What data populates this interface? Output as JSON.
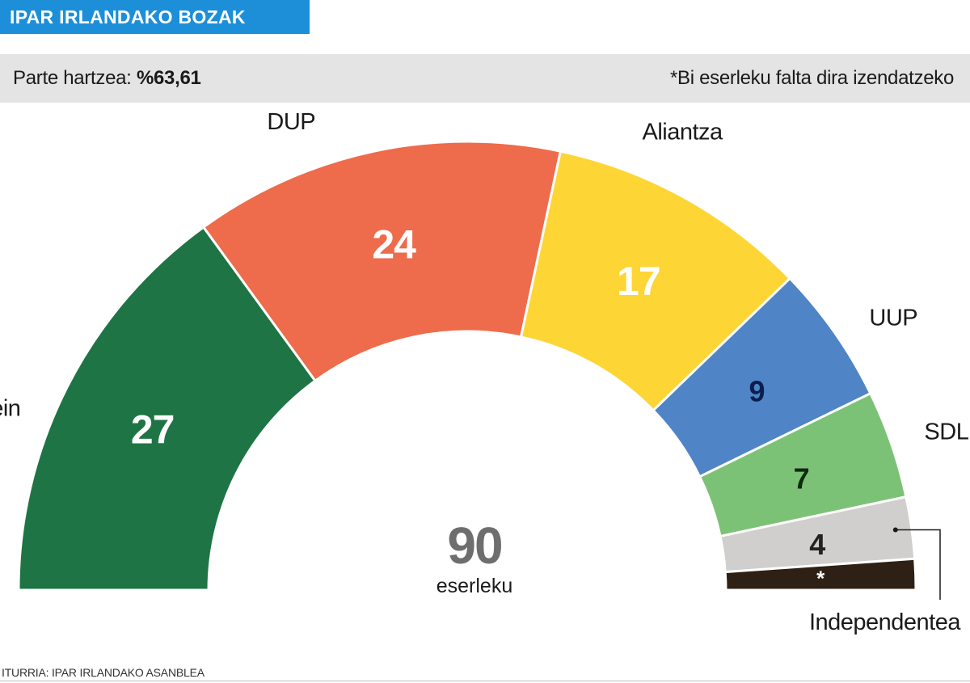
{
  "header": {
    "title": "IPAR IRLANDAKO BOZAK"
  },
  "info": {
    "turnout_label": "Parte hartzea:",
    "turnout_value": "%63,61",
    "note": "*Bi eserleku falta dira izendatzeko"
  },
  "chart_data": {
    "type": "parliament-hemicycle",
    "total": 90,
    "total_label": "eserleku",
    "series": [
      {
        "name": "Sinn Fein",
        "value": 27,
        "value_label": "27",
        "color": "#1e7444",
        "label_color": "#ffffff"
      },
      {
        "name": "DUP",
        "value": 24,
        "value_label": "24",
        "color": "#ee6b4b",
        "label_color": "#ffffff"
      },
      {
        "name": "Aliantza",
        "value": 17,
        "value_label": "17",
        "color": "#fdd535",
        "label_color": "#ffffff"
      },
      {
        "name": "UUP",
        "value": 9,
        "value_label": "9",
        "color": "#4f84c6",
        "label_color": "#0b1f4f"
      },
      {
        "name": "SDLP",
        "value": 7,
        "value_label": "7",
        "color": "#7cc276",
        "label_color": "#0e2a10"
      },
      {
        "name": "Independentea",
        "value": 4,
        "value_label": "4",
        "color": "#d0cfcd",
        "label_color": "#222222"
      },
      {
        "name": "",
        "value": 2,
        "value_label": "*",
        "color": "#2e2014",
        "label_color": "#ffffff"
      }
    ]
  },
  "footer": {
    "source": "ITURRIA: IPAR IRLANDAKO ASANBLEA"
  }
}
